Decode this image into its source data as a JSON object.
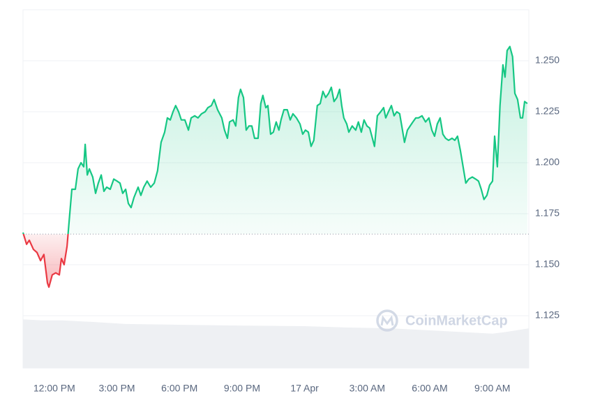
{
  "chart_data": {
    "type": "line",
    "watermark": "CoinMarketCap",
    "x": [
      10.5,
      10.67,
      10.8,
      11.0,
      11.17,
      11.34,
      11.5,
      11.67,
      11.74,
      11.9,
      12.07,
      12.24,
      12.34,
      12.47,
      12.61,
      12.74,
      12.84,
      13.01,
      13.14,
      13.28,
      13.41,
      13.48,
      13.58,
      13.68,
      13.84,
      13.98,
      14.11,
      14.25,
      14.38,
      14.51,
      14.68,
      14.85,
      15.01,
      15.15,
      15.28,
      15.42,
      15.55,
      15.68,
      15.82,
      16.02,
      16.15,
      16.29,
      16.45,
      16.62,
      16.79,
      16.95,
      17.12,
      17.29,
      17.42,
      17.56,
      17.69,
      17.82,
      17.96,
      18.09,
      18.26,
      18.43,
      18.56,
      18.73,
      18.89,
      19.06,
      19.23,
      19.36,
      19.53,
      19.66,
      19.83,
      20.03,
      20.16,
      20.3,
      20.4,
      20.57,
      20.7,
      20.83,
      20.93,
      21.07,
      21.2,
      21.33,
      21.47,
      21.6,
      21.77,
      21.9,
      22.0,
      22.14,
      22.24,
      22.37,
      22.5,
      22.64,
      22.77,
      22.87,
      23.01,
      23.17,
      23.31,
      23.44,
      23.61,
      23.78,
      23.91,
      24.04,
      24.18,
      24.31,
      24.44,
      24.61,
      24.75,
      24.88,
      25.01,
      25.15,
      25.28,
      25.41,
      25.55,
      25.68,
      25.78,
      25.88,
      26.02,
      26.12,
      26.28,
      26.45,
      26.58,
      26.72,
      26.85,
      26.99,
      27.12,
      27.25,
      27.35,
      27.49,
      27.65,
      27.79,
      27.89,
      28.02,
      28.16,
      28.29,
      28.42,
      28.56,
      28.66,
      28.79,
      28.93,
      29.06,
      29.19,
      29.33,
      29.46,
      29.63,
      29.8,
      29.96,
      30.1,
      30.23,
      30.36,
      30.5,
      30.63,
      30.76,
      30.9,
      31.07,
      31.2,
      31.33,
      31.47,
      31.6,
      31.73,
      31.87,
      32.04,
      32.2,
      32.34,
      32.47,
      32.6,
      32.74,
      32.87,
      33.01,
      33.11,
      33.24,
      33.37,
      33.51,
      33.61,
      33.71,
      33.84,
      33.97,
      34.08,
      34.21,
      34.35,
      34.45,
      34.55,
      34.68
    ],
    "values": [
      1.1658,
      1.16,
      1.162,
      1.1575,
      1.156,
      1.152,
      1.155,
      1.141,
      1.139,
      1.145,
      1.146,
      1.145,
      1.153,
      1.15,
      1.159,
      1.175,
      1.187,
      1.187,
      1.197,
      1.2,
      1.198,
      1.209,
      1.194,
      1.197,
      1.193,
      1.185,
      1.19,
      1.194,
      1.186,
      1.188,
      1.187,
      1.192,
      1.191,
      1.19,
      1.185,
      1.187,
      1.18,
      1.178,
      1.183,
      1.188,
      1.184,
      1.188,
      1.191,
      1.188,
      1.19,
      1.196,
      1.21,
      1.215,
      1.222,
      1.221,
      1.225,
      1.228,
      1.225,
      1.221,
      1.221,
      1.216,
      1.222,
      1.223,
      1.222,
      1.224,
      1.225,
      1.227,
      1.228,
      1.231,
      1.226,
      1.222,
      1.216,
      1.212,
      1.22,
      1.221,
      1.218,
      1.232,
      1.236,
      1.232,
      1.216,
      1.218,
      1.218,
      1.212,
      1.212,
      1.229,
      1.233,
      1.227,
      1.228,
      1.214,
      1.215,
      1.22,
      1.216,
      1.221,
      1.226,
      1.226,
      1.221,
      1.224,
      1.222,
      1.219,
      1.214,
      1.216,
      1.215,
      1.208,
      1.211,
      1.228,
      1.229,
      1.235,
      1.232,
      1.234,
      1.237,
      1.23,
      1.232,
      1.236,
      1.228,
      1.222,
      1.219,
      1.215,
      1.218,
      1.216,
      1.22,
      1.215,
      1.221,
      1.218,
      1.217,
      1.212,
      1.208,
      1.223,
      1.225,
      1.227,
      1.222,
      1.225,
      1.228,
      1.223,
      1.225,
      1.224,
      1.218,
      1.21,
      1.216,
      1.218,
      1.22,
      1.222,
      1.222,
      1.223,
      1.22,
      1.222,
      1.216,
      1.213,
      1.219,
      1.222,
      1.214,
      1.212,
      1.211,
      1.212,
      1.211,
      1.213,
      1.206,
      1.198,
      1.19,
      1.192,
      1.193,
      1.192,
      1.191,
      1.187,
      1.182,
      1.184,
      1.189,
      1.191,
      1.213,
      1.198,
      1.228,
      1.248,
      1.242,
      1.255,
      1.257,
      1.252,
      1.234,
      1.231,
      1.222,
      1.222,
      1.23,
      1.229
    ],
    "baseline": 1.165,
    "color_up": "#16c784",
    "color_down": "#ea3943",
    "volume": {
      "x": [
        10.5,
        11.4,
        12.41,
        13.74,
        15.42,
        17.76,
        20.43,
        23.98,
        26.12,
        28.12,
        30.8,
        33.01,
        33.67,
        34.75
      ],
      "values": [
        13.6,
        13.3,
        13.3,
        12.9,
        12.3,
        12.1,
        11.9,
        11.7,
        11.3,
        11.1,
        10.3,
        9.6,
        10.1,
        11.1
      ],
      "ylim": [
        0,
        100
      ],
      "color": "#eef0f3"
    },
    "xlim": [
      10.5,
      34.75
    ],
    "xticks": [
      {
        "value": 12,
        "label": "12:00 PM"
      },
      {
        "value": 15,
        "label": "3:00 PM"
      },
      {
        "value": 18,
        "label": "6:00 PM"
      },
      {
        "value": 21,
        "label": "9:00 PM"
      },
      {
        "value": 24,
        "label": "17 Apr"
      },
      {
        "value": 27,
        "label": "3:00 AM"
      },
      {
        "value": 30,
        "label": "6:00 AM"
      },
      {
        "value": 33,
        "label": "9:00 AM"
      }
    ],
    "ylim": [
      1.1,
      1.275
    ],
    "yticks": [
      {
        "value": 1.25,
        "label": "1.250"
      },
      1.225,
      {
        "value": 1.2,
        "label": "1.200"
      },
      1.175,
      {
        "value": 1.15,
        "label": "1.150"
      },
      1.125
    ],
    "grid": true
  }
}
